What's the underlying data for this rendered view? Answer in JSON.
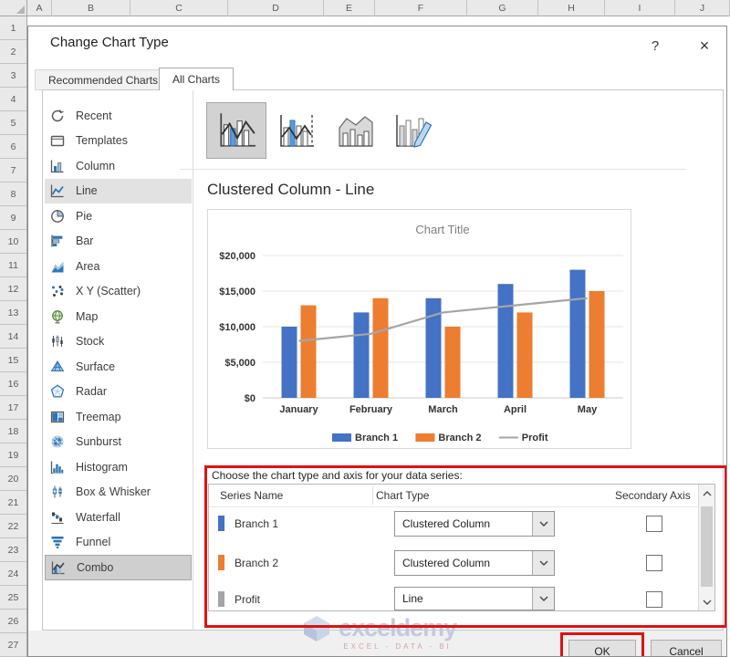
{
  "spreadsheet": {
    "column_headers": [
      "A",
      "B",
      "C",
      "D",
      "E",
      "F",
      "G",
      "H",
      "I",
      "J"
    ],
    "row_labels": [
      "1",
      "2",
      "3",
      "4",
      "5",
      "6",
      "7",
      "8",
      "9",
      "10",
      "11",
      "12",
      "13",
      "14",
      "15",
      "16",
      "17",
      "18",
      "19",
      "20",
      "21",
      "22",
      "23",
      "24",
      "25",
      "26",
      "27"
    ]
  },
  "dialog": {
    "title": "Change Chart Type",
    "help_label": "?",
    "close_label": "×",
    "tabs": [
      {
        "label": "Recommended Charts",
        "active": false
      },
      {
        "label": "All Charts",
        "active": true
      }
    ],
    "sidebar": {
      "items": [
        {
          "label": "Recent",
          "icon": "recent-icon",
          "state": "normal"
        },
        {
          "label": "Templates",
          "icon": "templates-icon",
          "state": "normal"
        },
        {
          "label": "Column",
          "icon": "column-icon",
          "state": "normal"
        },
        {
          "label": "Line",
          "icon": "line-icon",
          "state": "highlighted"
        },
        {
          "label": "Pie",
          "icon": "pie-icon",
          "state": "normal"
        },
        {
          "label": "Bar",
          "icon": "bar-icon",
          "state": "normal"
        },
        {
          "label": "Area",
          "icon": "area-icon",
          "state": "normal"
        },
        {
          "label": "X Y (Scatter)",
          "icon": "scatter-icon",
          "state": "normal"
        },
        {
          "label": "Map",
          "icon": "map-icon",
          "state": "normal"
        },
        {
          "label": "Stock",
          "icon": "stock-icon",
          "state": "normal"
        },
        {
          "label": "Surface",
          "icon": "surface-icon",
          "state": "normal"
        },
        {
          "label": "Radar",
          "icon": "radar-icon",
          "state": "normal"
        },
        {
          "label": "Treemap",
          "icon": "treemap-icon",
          "state": "normal"
        },
        {
          "label": "Sunburst",
          "icon": "sunburst-icon",
          "state": "normal"
        },
        {
          "label": "Histogram",
          "icon": "histogram-icon",
          "state": "normal"
        },
        {
          "label": "Box & Whisker",
          "icon": "box-whisker-icon",
          "state": "normal"
        },
        {
          "label": "Waterfall",
          "icon": "waterfall-icon",
          "state": "normal"
        },
        {
          "label": "Funnel",
          "icon": "funnel-icon",
          "state": "normal"
        },
        {
          "label": "Combo",
          "icon": "combo-icon",
          "state": "selected"
        }
      ]
    },
    "subtypes": [
      {
        "icon": "combo-clustered-column-line-icon",
        "selected": true
      },
      {
        "icon": "combo-clustered-column-line-secondary-axis-icon",
        "selected": false
      },
      {
        "icon": "combo-stacked-area-clustered-column-icon",
        "selected": false
      },
      {
        "icon": "combo-custom-combination-icon",
        "selected": false
      }
    ],
    "heading": "Clustered Column - Line",
    "series_section": {
      "label": "Choose the chart type and axis for your data series:",
      "columns": [
        "Series Name",
        "Chart Type",
        "Secondary Axis"
      ],
      "rows": [
        {
          "name": "Branch 1",
          "marker_color": "#4472C4",
          "chart_type": "Clustered Column",
          "secondary_axis": false
        },
        {
          "name": "Branch 2",
          "marker_color": "#ED7D31",
          "chart_type": "Clustered Column",
          "secondary_axis": false
        },
        {
          "name": "Profit",
          "marker_color": "#A5A5A5",
          "chart_type": "Line",
          "secondary_axis": false
        }
      ]
    },
    "buttons": {
      "ok": "OK",
      "cancel": "Cancel"
    },
    "watermark": {
      "text": "exceldemy",
      "tagline": "EXCEL - DATA - BI"
    }
  },
  "chart_data": {
    "type": "combo",
    "title": "Chart Title",
    "categories": [
      "January",
      "February",
      "March",
      "April",
      "May"
    ],
    "series": [
      {
        "name": "Branch 1",
        "type": "bar",
        "color": "#4472C4",
        "values": [
          10000,
          12000,
          14000,
          16000,
          18000
        ]
      },
      {
        "name": "Branch 2",
        "type": "bar",
        "color": "#ED7D31",
        "values": [
          13000,
          14000,
          10000,
          12000,
          15000
        ]
      },
      {
        "name": "Profit",
        "type": "line",
        "color": "#A5A5A5",
        "values": [
          8000,
          9000,
          12000,
          13000,
          14000
        ]
      }
    ],
    "ylim": [
      0,
      20000
    ],
    "ytick_step": 5000,
    "ytick_labels": [
      "$0",
      "$5,000",
      "$10,000",
      "$15,000",
      "$20,000"
    ],
    "grid": true,
    "legend_position": "bottom"
  },
  "colors": {
    "branch1_blue": "#4472C4",
    "branch2_orange": "#ED7D31",
    "profit_gray": "#A5A5A5",
    "annotation_red": "#E01111",
    "sidebar_selected": "#cfcfcf",
    "sidebar_highlight": "#e2e2e2"
  }
}
